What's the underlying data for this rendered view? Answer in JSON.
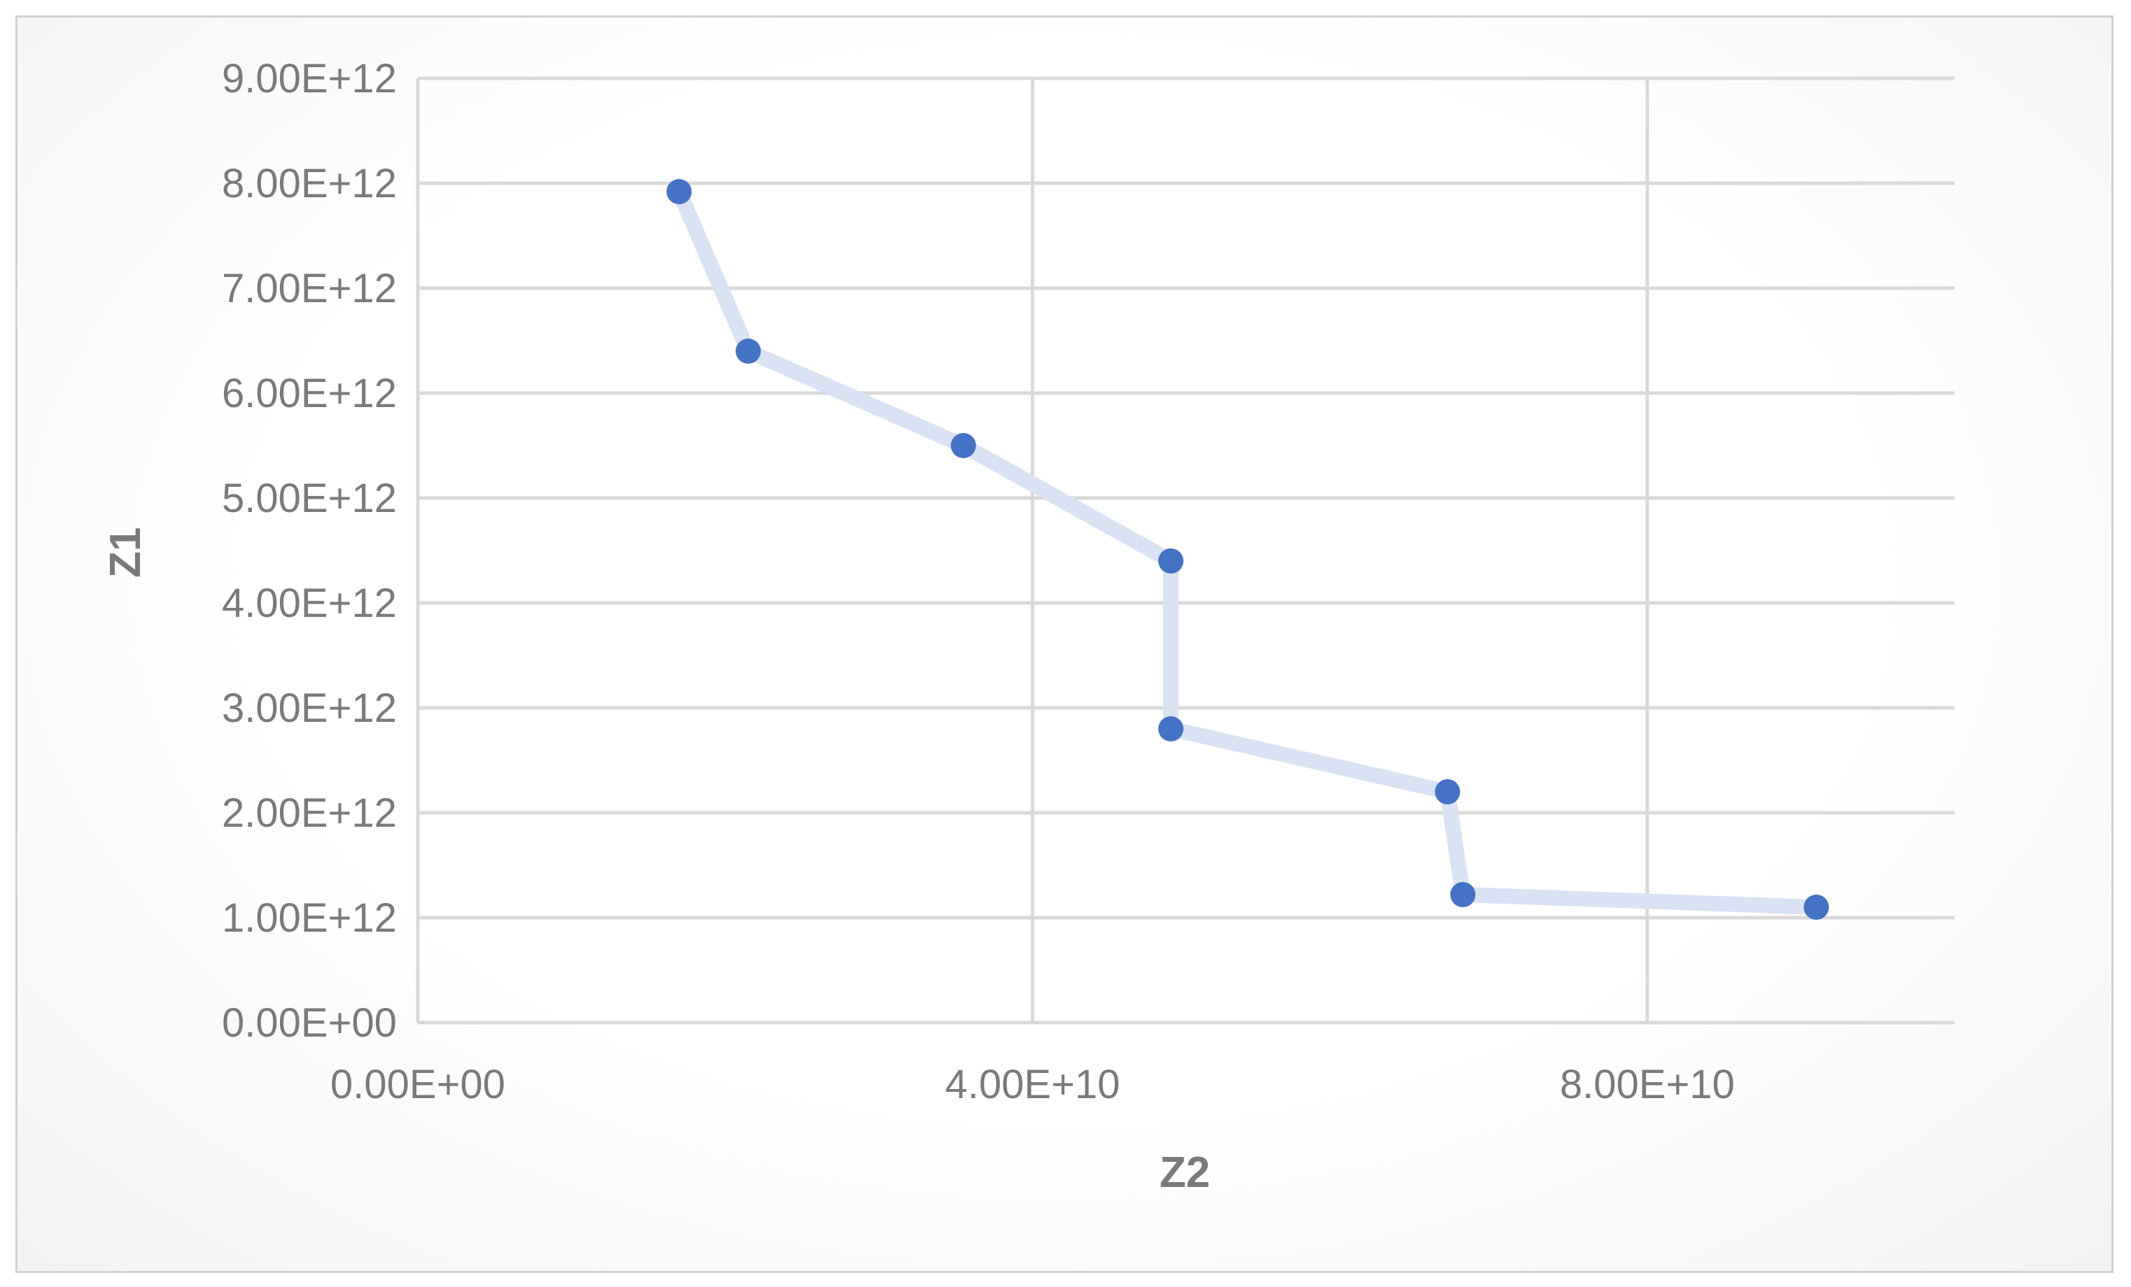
{
  "chart_data": {
    "type": "scatter",
    "title": "",
    "xlabel": "Z2",
    "ylabel": "Z1",
    "xlim": [
      0,
      100000000000
    ],
    "ylim": [
      0,
      9000000000000
    ],
    "x_ticks": [
      0,
      40000000000,
      80000000000
    ],
    "x_tick_labels": [
      "0.00E+00",
      "4.00E+10",
      "8.00E+10"
    ],
    "y_ticks": [
      0,
      1000000000000,
      2000000000000,
      3000000000000,
      4000000000000,
      5000000000000,
      6000000000000,
      7000000000000,
      8000000000000,
      9000000000000
    ],
    "y_tick_labels": [
      "0.00E+00",
      "1.00E+12",
      "2.00E+12",
      "3.00E+12",
      "4.00E+12",
      "5.00E+12",
      "6.00E+12",
      "7.00E+12",
      "8.00E+12",
      "9.00E+12"
    ],
    "grid": true,
    "legend": "none",
    "series": [
      {
        "color": "#4472c4",
        "line_color": "#dae3f3",
        "points": [
          {
            "x": 17000000000,
            "y": 7920000000000
          },
          {
            "x": 21500000000,
            "y": 6400000000000
          },
          {
            "x": 35500000000,
            "y": 5500000000000
          },
          {
            "x": 49000000000,
            "y": 4400000000000
          },
          {
            "x": 49000000000,
            "y": 2800000000000
          },
          {
            "x": 67000000000,
            "y": 2200000000000
          },
          {
            "x": 68000000000,
            "y": 1220000000000
          },
          {
            "x": 91000000000,
            "y": 1100000000000
          }
        ]
      }
    ]
  }
}
